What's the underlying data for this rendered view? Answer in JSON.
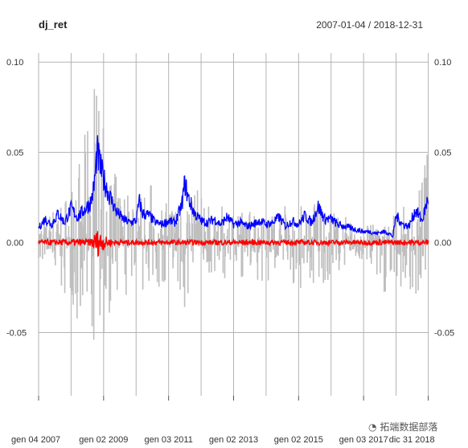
{
  "chart_data": {
    "type": "line",
    "title": "dj_ret",
    "date_range": "2007-01-04 / 2018-12-31",
    "ylim": [
      -0.085,
      0.105
    ],
    "y_ticks": [
      {
        "value": 0.1,
        "label": "0.10"
      },
      {
        "value": 0.05,
        "label": "0.05"
      },
      {
        "value": 0.0,
        "label": "0.00"
      },
      {
        "value": -0.05,
        "label": "-0.05"
      }
    ],
    "x_ticks": [
      {
        "t": 0.0,
        "label": "gen 04 2007"
      },
      {
        "t": 2.0,
        "label": "gen 02 2009"
      },
      {
        "t": 4.0,
        "label": "gen 03 2011"
      },
      {
        "t": 6.0,
        "label": "gen 02 2013"
      },
      {
        "t": 8.0,
        "label": "gen 02 2015"
      },
      {
        "t": 10.0,
        "label": "gen 03 2017"
      },
      {
        "t": 11.99,
        "label": "dic 31 2018"
      }
    ],
    "grid": true,
    "series": [
      {
        "name": "",
        "kind": "returns-bars",
        "color": "#bebebe",
        "x": [
          0.0,
          0.5,
          1.0,
          1.3,
          1.6,
          1.75,
          1.85,
          1.95,
          2.1,
          2.3,
          2.5,
          2.8,
          3.0,
          3.3,
          3.6,
          4.0,
          4.4,
          4.6,
          4.9,
          5.3,
          5.8,
          6.2,
          6.6,
          7.0,
          7.4,
          7.8,
          8.2,
          8.6,
          9.0,
          9.4,
          9.8,
          10.2,
          10.5,
          10.8,
          11.1,
          11.4,
          11.7,
          11.9
        ],
        "pos": [
          0.012,
          0.02,
          0.03,
          0.05,
          0.075,
          0.105,
          0.08,
          0.07,
          0.055,
          0.04,
          0.035,
          0.03,
          0.025,
          0.032,
          0.035,
          0.02,
          0.03,
          0.025,
          0.03,
          0.02,
          0.02,
          0.018,
          0.02,
          0.022,
          0.018,
          0.025,
          0.02,
          0.03,
          0.02,
          0.015,
          0.012,
          0.01,
          0.01,
          0.013,
          0.02,
          0.02,
          0.03,
          0.05
        ],
        "neg": [
          -0.01,
          -0.035,
          -0.03,
          -0.06,
          -0.075,
          -0.085,
          -0.085,
          -0.06,
          -0.05,
          -0.035,
          -0.03,
          -0.035,
          -0.025,
          -0.03,
          -0.03,
          -0.025,
          -0.058,
          -0.035,
          -0.025,
          -0.022,
          -0.02,
          -0.02,
          -0.02,
          -0.025,
          -0.02,
          -0.03,
          -0.025,
          -0.025,
          -0.02,
          -0.015,
          -0.01,
          -0.012,
          -0.04,
          -0.02,
          -0.025,
          -0.03,
          -0.03,
          -0.03
        ]
      },
      {
        "name": "",
        "kind": "volatility",
        "color": "#0000ff",
        "x": [
          0.0,
          0.2,
          0.4,
          0.6,
          0.8,
          1.0,
          1.2,
          1.4,
          1.6,
          1.7,
          1.8,
          1.9,
          2.0,
          2.1,
          2.2,
          2.4,
          2.6,
          2.8,
          3.0,
          3.1,
          3.2,
          3.4,
          3.6,
          3.8,
          4.0,
          4.2,
          4.4,
          4.5,
          4.6,
          4.8,
          5.0,
          5.2,
          5.4,
          5.6,
          5.8,
          6.0,
          6.2,
          6.4,
          6.6,
          6.8,
          7.0,
          7.2,
          7.4,
          7.6,
          7.8,
          8.0,
          8.2,
          8.4,
          8.6,
          8.8,
          9.0,
          9.2,
          9.4,
          9.6,
          9.8,
          10.0,
          10.2,
          10.4,
          10.6,
          10.8,
          10.9,
          11.0,
          11.2,
          11.4,
          11.6,
          11.8,
          11.99
        ],
        "y": [
          0.008,
          0.013,
          0.01,
          0.016,
          0.011,
          0.019,
          0.014,
          0.018,
          0.022,
          0.03,
          0.05,
          0.042,
          0.035,
          0.03,
          0.025,
          0.017,
          0.013,
          0.011,
          0.012,
          0.023,
          0.016,
          0.015,
          0.011,
          0.01,
          0.012,
          0.011,
          0.02,
          0.033,
          0.025,
          0.016,
          0.012,
          0.011,
          0.013,
          0.01,
          0.014,
          0.01,
          0.011,
          0.009,
          0.01,
          0.012,
          0.01,
          0.011,
          0.014,
          0.009,
          0.012,
          0.01,
          0.015,
          0.011,
          0.02,
          0.013,
          0.013,
          0.01,
          0.009,
          0.008,
          0.007,
          0.006,
          0.006,
          0.005,
          0.006,
          0.005,
          0.003,
          0.015,
          0.01,
          0.009,
          0.018,
          0.012,
          0.025
        ]
      },
      {
        "name": "",
        "kind": "mean",
        "color": "#ff0000",
        "x": [
          0.0,
          1.6,
          1.75,
          1.85,
          1.95,
          2.1,
          2.3,
          12.0
        ],
        "amp": [
          0.0015,
          0.002,
          0.006,
          0.008,
          0.005,
          0.003,
          0.0015,
          0.0015
        ]
      }
    ]
  },
  "watermark": "拓端数据部落"
}
